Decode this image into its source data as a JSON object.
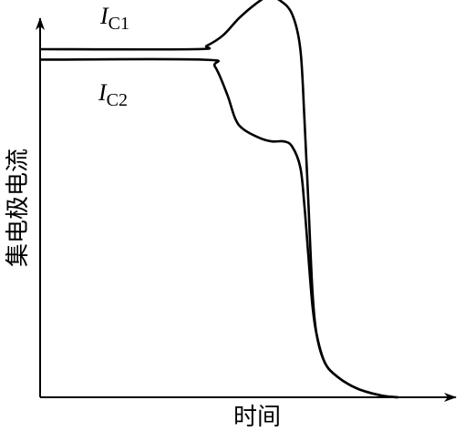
{
  "chart_data": {
    "type": "line",
    "xlabel": "时间",
    "ylabel": "集电极电流",
    "x_ticks": false,
    "y_ticks": false,
    "grid": false,
    "series": [
      {
        "name": "I_C1",
        "label_main": "I",
        "label_sub": "C1",
        "color": "#000000",
        "points": [
          [
            0.0,
            1.0
          ],
          [
            0.38,
            1.0
          ],
          [
            0.41,
            1.01
          ],
          [
            0.45,
            1.04
          ],
          [
            0.49,
            1.09
          ],
          [
            0.53,
            1.13
          ],
          [
            0.56,
            1.15
          ],
          [
            0.59,
            1.14
          ],
          [
            0.62,
            1.1
          ],
          [
            0.64,
            1.0
          ],
          [
            0.65,
            0.8
          ],
          [
            0.66,
            0.55
          ],
          [
            0.67,
            0.3
          ],
          [
            0.68,
            0.18
          ],
          [
            0.7,
            0.1
          ],
          [
            0.73,
            0.06
          ],
          [
            0.78,
            0.025
          ],
          [
            0.84,
            0.005
          ],
          [
            0.88,
            0.0
          ]
        ]
      },
      {
        "name": "I_C2",
        "label_main": "I",
        "label_sub": "C2",
        "color": "#000000",
        "points": [
          [
            0.0,
            0.97
          ],
          [
            0.4,
            0.97
          ],
          [
            0.43,
            0.95
          ],
          [
            0.46,
            0.87
          ],
          [
            0.48,
            0.8
          ],
          [
            0.5,
            0.77
          ],
          [
            0.54,
            0.745
          ],
          [
            0.57,
            0.735
          ],
          [
            0.6,
            0.735
          ],
          [
            0.62,
            0.72
          ],
          [
            0.64,
            0.66
          ],
          [
            0.65,
            0.55
          ],
          [
            0.66,
            0.4
          ],
          [
            0.67,
            0.26
          ],
          [
            0.68,
            0.18
          ],
          [
            0.7,
            0.1
          ],
          [
            0.73,
            0.06
          ],
          [
            0.78,
            0.025
          ],
          [
            0.84,
            0.005
          ],
          [
            0.88,
            0.0
          ]
        ]
      }
    ]
  }
}
